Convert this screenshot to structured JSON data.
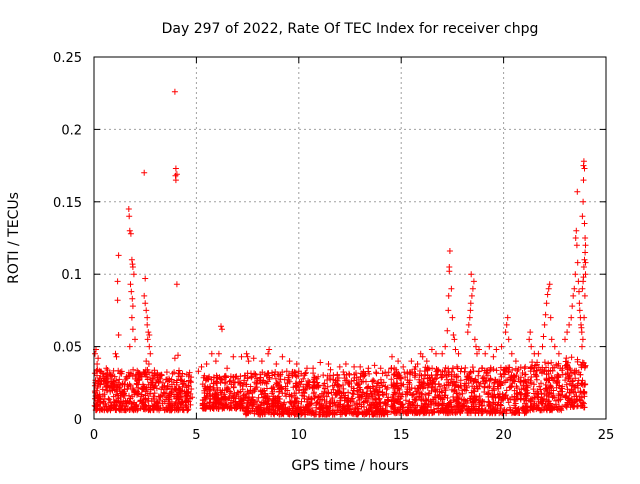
{
  "chart_data": {
    "type": "scatter",
    "title": "Day 297 of 2022, Rate Of TEC Index for receiver chpg",
    "xlabel": "GPS time / hours",
    "ylabel": "ROTI / TECUs",
    "xlim": [
      0,
      25
    ],
    "ylim": [
      0,
      0.25
    ],
    "x_ticks": [
      "0",
      "5",
      "10",
      "15",
      "20",
      "25"
    ],
    "y_ticks": [
      "0",
      "0.05",
      "0.1",
      "0.15",
      "0.2",
      "0.25"
    ],
    "grid": true,
    "marker": "+",
    "colors": {
      "series": "#ff0000",
      "grid": "#a0a0a0",
      "axis": "#000000"
    },
    "series": [
      {
        "name": "",
        "points": [
          [
            0.05,
            0.045
          ],
          [
            0.1,
            0.048
          ],
          [
            0.15,
            0.038
          ],
          [
            0.2,
            0.042
          ],
          [
            0.6,
            0.035
          ],
          [
            1.05,
            0.045
          ],
          [
            1.1,
            0.043
          ],
          [
            1.15,
            0.095
          ],
          [
            1.2,
            0.113
          ],
          [
            1.15,
            0.082
          ],
          [
            1.2,
            0.058
          ],
          [
            1.7,
            0.145
          ],
          [
            1.72,
            0.14
          ],
          [
            1.75,
            0.13
          ],
          [
            1.8,
            0.128
          ],
          [
            1.85,
            0.11
          ],
          [
            1.88,
            0.107
          ],
          [
            1.9,
            0.105
          ],
          [
            1.95,
            0.1
          ],
          [
            1.78,
            0.093
          ],
          [
            1.82,
            0.088
          ],
          [
            1.87,
            0.083
          ],
          [
            1.9,
            0.078
          ],
          [
            1.85,
            0.07
          ],
          [
            1.9,
            0.062
          ],
          [
            2.0,
            0.055
          ],
          [
            1.75,
            0.05
          ],
          [
            2.45,
            0.17
          ],
          [
            2.5,
            0.097
          ],
          [
            2.45,
            0.085
          ],
          [
            2.5,
            0.08
          ],
          [
            2.55,
            0.075
          ],
          [
            2.6,
            0.07
          ],
          [
            2.6,
            0.065
          ],
          [
            2.65,
            0.06
          ],
          [
            2.7,
            0.058
          ],
          [
            2.62,
            0.055
          ],
          [
            2.7,
            0.05
          ],
          [
            2.75,
            0.045
          ],
          [
            2.55,
            0.04
          ],
          [
            2.68,
            0.038
          ],
          [
            3.95,
            0.226
          ],
          [
            4.0,
            0.173
          ],
          [
            3.98,
            0.168
          ],
          [
            4.0,
            0.165
          ],
          [
            4.05,
            0.169
          ],
          [
            4.05,
            0.093
          ],
          [
            4.1,
            0.044
          ],
          [
            3.95,
            0.042
          ],
          [
            5.1,
            0.033
          ],
          [
            5.25,
            0.036
          ],
          [
            5.5,
            0.038
          ],
          [
            5.75,
            0.045
          ],
          [
            5.95,
            0.04
          ],
          [
            6.2,
            0.064
          ],
          [
            6.25,
            0.062
          ],
          [
            6.1,
            0.045
          ],
          [
            6.5,
            0.035
          ],
          [
            6.8,
            0.043
          ],
          [
            7.2,
            0.043
          ],
          [
            7.45,
            0.045
          ],
          [
            7.5,
            0.043
          ],
          [
            7.55,
            0.04
          ],
          [
            7.8,
            0.042
          ],
          [
            8.2,
            0.04
          ],
          [
            8.5,
            0.045
          ],
          [
            8.55,
            0.048
          ],
          [
            8.9,
            0.038
          ],
          [
            9.2,
            0.043
          ],
          [
            9.55,
            0.04
          ],
          [
            9.9,
            0.038
          ],
          [
            10.0,
            0.033
          ],
          [
            10.4,
            0.035
          ],
          [
            10.7,
            0.035
          ],
          [
            11.05,
            0.039
          ],
          [
            11.45,
            0.038
          ],
          [
            11.55,
            0.034
          ],
          [
            12.0,
            0.036
          ],
          [
            12.3,
            0.038
          ],
          [
            12.7,
            0.036
          ],
          [
            13.0,
            0.036
          ],
          [
            13.4,
            0.035
          ],
          [
            13.7,
            0.037
          ],
          [
            14.0,
            0.035
          ],
          [
            14.3,
            0.03
          ],
          [
            14.55,
            0.043
          ],
          [
            14.85,
            0.04
          ],
          [
            15.1,
            0.036
          ],
          [
            15.5,
            0.04
          ],
          [
            15.8,
            0.038
          ],
          [
            15.95,
            0.045
          ],
          [
            16.05,
            0.043
          ],
          [
            16.25,
            0.04
          ],
          [
            16.5,
            0.048
          ],
          [
            16.7,
            0.045
          ],
          [
            17.0,
            0.045
          ],
          [
            17.15,
            0.05
          ],
          [
            17.25,
            0.061
          ],
          [
            17.3,
            0.075
          ],
          [
            17.32,
            0.085
          ],
          [
            17.35,
            0.102
          ],
          [
            17.35,
            0.105
          ],
          [
            17.38,
            0.116
          ],
          [
            17.45,
            0.09
          ],
          [
            17.5,
            0.07
          ],
          [
            17.55,
            0.058
          ],
          [
            17.6,
            0.055
          ],
          [
            17.65,
            0.048
          ],
          [
            17.8,
            0.045
          ],
          [
            18.25,
            0.06
          ],
          [
            18.3,
            0.065
          ],
          [
            18.35,
            0.07
          ],
          [
            18.38,
            0.075
          ],
          [
            18.4,
            0.08
          ],
          [
            18.45,
            0.085
          ],
          [
            18.5,
            0.09
          ],
          [
            18.55,
            0.095
          ],
          [
            18.42,
            0.1
          ],
          [
            18.6,
            0.055
          ],
          [
            18.65,
            0.05
          ],
          [
            18.7,
            0.045
          ],
          [
            18.8,
            0.048
          ],
          [
            19.1,
            0.045
          ],
          [
            19.3,
            0.05
          ],
          [
            19.5,
            0.043
          ],
          [
            19.65,
            0.048
          ],
          [
            19.9,
            0.05
          ],
          [
            20.1,
            0.06
          ],
          [
            20.15,
            0.065
          ],
          [
            20.2,
            0.07
          ],
          [
            20.25,
            0.055
          ],
          [
            20.4,
            0.045
          ],
          [
            20.6,
            0.04
          ],
          [
            21.25,
            0.055
          ],
          [
            21.3,
            0.06
          ],
          [
            21.35,
            0.05
          ],
          [
            21.5,
            0.045
          ],
          [
            21.7,
            0.045
          ],
          [
            21.9,
            0.05
          ],
          [
            21.95,
            0.057
          ],
          [
            22.0,
            0.065
          ],
          [
            22.05,
            0.072
          ],
          [
            22.1,
            0.08
          ],
          [
            22.15,
            0.086
          ],
          [
            22.2,
            0.09
          ],
          [
            22.25,
            0.093
          ],
          [
            22.3,
            0.07
          ],
          [
            22.35,
            0.055
          ],
          [
            22.5,
            0.05
          ],
          [
            22.7,
            0.045
          ],
          [
            23.0,
            0.055
          ],
          [
            23.1,
            0.06
          ],
          [
            23.2,
            0.065
          ],
          [
            23.3,
            0.07
          ],
          [
            23.35,
            0.078
          ],
          [
            23.4,
            0.085
          ],
          [
            23.45,
            0.09
          ],
          [
            23.5,
            0.1
          ],
          [
            23.52,
            0.125
          ],
          [
            23.55,
            0.13
          ],
          [
            23.58,
            0.12
          ],
          [
            23.6,
            0.157
          ],
          [
            23.62,
            0.108
          ],
          [
            23.65,
            0.095
          ],
          [
            23.68,
            0.088
          ],
          [
            23.7,
            0.08
          ],
          [
            23.72,
            0.075
          ],
          [
            23.75,
            0.07
          ],
          [
            23.78,
            0.065
          ],
          [
            23.8,
            0.063
          ],
          [
            23.82,
            0.06
          ],
          [
            23.85,
            0.09
          ],
          [
            23.88,
            0.095
          ],
          [
            23.9,
            0.098
          ],
          [
            23.92,
            0.105
          ],
          [
            23.95,
            0.11
          ],
          [
            23.98,
            0.115
          ],
          [
            24.0,
            0.12
          ],
          [
            23.85,
            0.14
          ],
          [
            23.88,
            0.15
          ],
          [
            23.9,
            0.165
          ],
          [
            23.9,
            0.175
          ],
          [
            23.92,
            0.178
          ],
          [
            23.95,
            0.173
          ],
          [
            23.95,
            0.135
          ],
          [
            23.98,
            0.125
          ],
          [
            24.0,
            0.108
          ],
          [
            24.0,
            0.1
          ],
          [
            23.97,
            0.085
          ],
          [
            23.93,
            0.07
          ],
          [
            23.87,
            0.055
          ],
          [
            23.83,
            0.05
          ]
        ],
        "baseline_segments": [
          [
            0.0,
            4.8,
            0.006,
            0.034
          ],
          [
            5.3,
            7.3,
            0.007,
            0.03
          ],
          [
            7.3,
            14.4,
            0.003,
            0.033
          ],
          [
            14.5,
            21.2,
            0.004,
            0.036
          ],
          [
            21.3,
            22.9,
            0.006,
            0.04
          ],
          [
            23.0,
            24.0,
            0.008,
            0.045
          ]
        ],
        "baseline_segments_fields": [
          "x_from",
          "x_to",
          "y_min",
          "y_max"
        ],
        "gaps": [
          [
            4.8,
            5.3
          ],
          [
            22.9,
            23.0
          ]
        ]
      }
    ]
  }
}
